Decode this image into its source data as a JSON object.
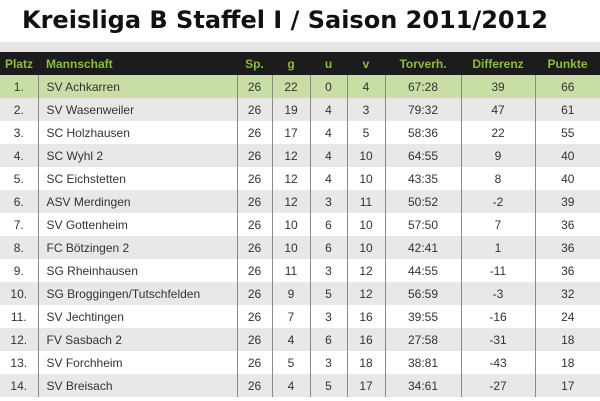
{
  "title": "Kreisliga B Staffel I / Saison 2011/2012",
  "columns": [
    "Platz",
    "Mannschaft",
    "Sp.",
    "g",
    "u",
    "v",
    "Torverh.",
    "Differenz",
    "Punkte"
  ],
  "colors": {
    "header_bg": "#1c1c1c",
    "header_text": "#8bbd3a",
    "leader_row": "#c9dea4",
    "alt_row": "#e8e8e8"
  },
  "rows": [
    [
      "1.",
      "SV Achkarren",
      "26",
      "22",
      "0",
      "4",
      "67:28",
      "39",
      "66"
    ],
    [
      "2.",
      "SV Wasenweiler",
      "26",
      "19",
      "4",
      "3",
      "79:32",
      "47",
      "61"
    ],
    [
      "3.",
      "SC Holzhausen",
      "26",
      "17",
      "4",
      "5",
      "58:36",
      "22",
      "55"
    ],
    [
      "4.",
      "SC Wyhl 2",
      "26",
      "12",
      "4",
      "10",
      "64:55",
      "9",
      "40"
    ],
    [
      "5.",
      "SC Eichstetten",
      "26",
      "12",
      "4",
      "10",
      "43:35",
      "8",
      "40"
    ],
    [
      "6.",
      "ASV Merdingen",
      "26",
      "12",
      "3",
      "11",
      "50:52",
      "-2",
      "39"
    ],
    [
      "7.",
      "SV Gottenheim",
      "26",
      "10",
      "6",
      "10",
      "57:50",
      "7",
      "36"
    ],
    [
      "8.",
      "FC Bötzingen 2",
      "26",
      "10",
      "6",
      "10",
      "42:41",
      "1",
      "36"
    ],
    [
      "9.",
      "SG Rheinhausen",
      "26",
      "11",
      "3",
      "12",
      "44:55",
      "-11",
      "36"
    ],
    [
      "10.",
      "SG Broggingen/Tutschfelden",
      "26",
      "9",
      "5",
      "12",
      "56:59",
      "-3",
      "32"
    ],
    [
      "11.",
      "SV Jechtingen",
      "26",
      "7",
      "3",
      "16",
      "39:55",
      "-16",
      "24"
    ],
    [
      "12.",
      "FV Sasbach 2",
      "26",
      "4",
      "6",
      "16",
      "27:58",
      "-31",
      "18"
    ],
    [
      "13.",
      "SV Forchheim",
      "26",
      "5",
      "3",
      "18",
      "38:81",
      "-43",
      "18"
    ],
    [
      "14.",
      "SV Breisach",
      "26",
      "4",
      "5",
      "17",
      "34:61",
      "-27",
      "17"
    ]
  ]
}
